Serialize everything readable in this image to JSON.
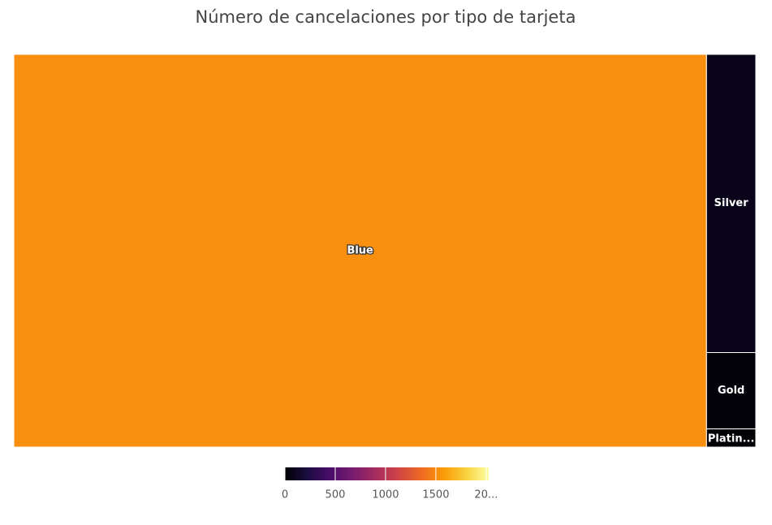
{
  "chart_data": {
    "type": "treemap",
    "title": "Número de cancelaciones por tipo de tarjeta",
    "categories": [
      "Blue",
      "Silver",
      "Gold",
      "Platin..."
    ],
    "values": [
      1519,
      82,
      21,
      5
    ],
    "colorscale": [
      "#000004",
      "#1b0c41",
      "#4a0c6b",
      "#781c6d",
      "#a52c60",
      "#cf4446",
      "#ed6925",
      "#fb9b06",
      "#f7d13d",
      "#fcffa4"
    ],
    "clim": [
      0,
      2025
    ],
    "cticks": [
      0,
      500,
      1000,
      1500,
      {
        "value": 2000,
        "label": "20..."
      }
    ]
  }
}
